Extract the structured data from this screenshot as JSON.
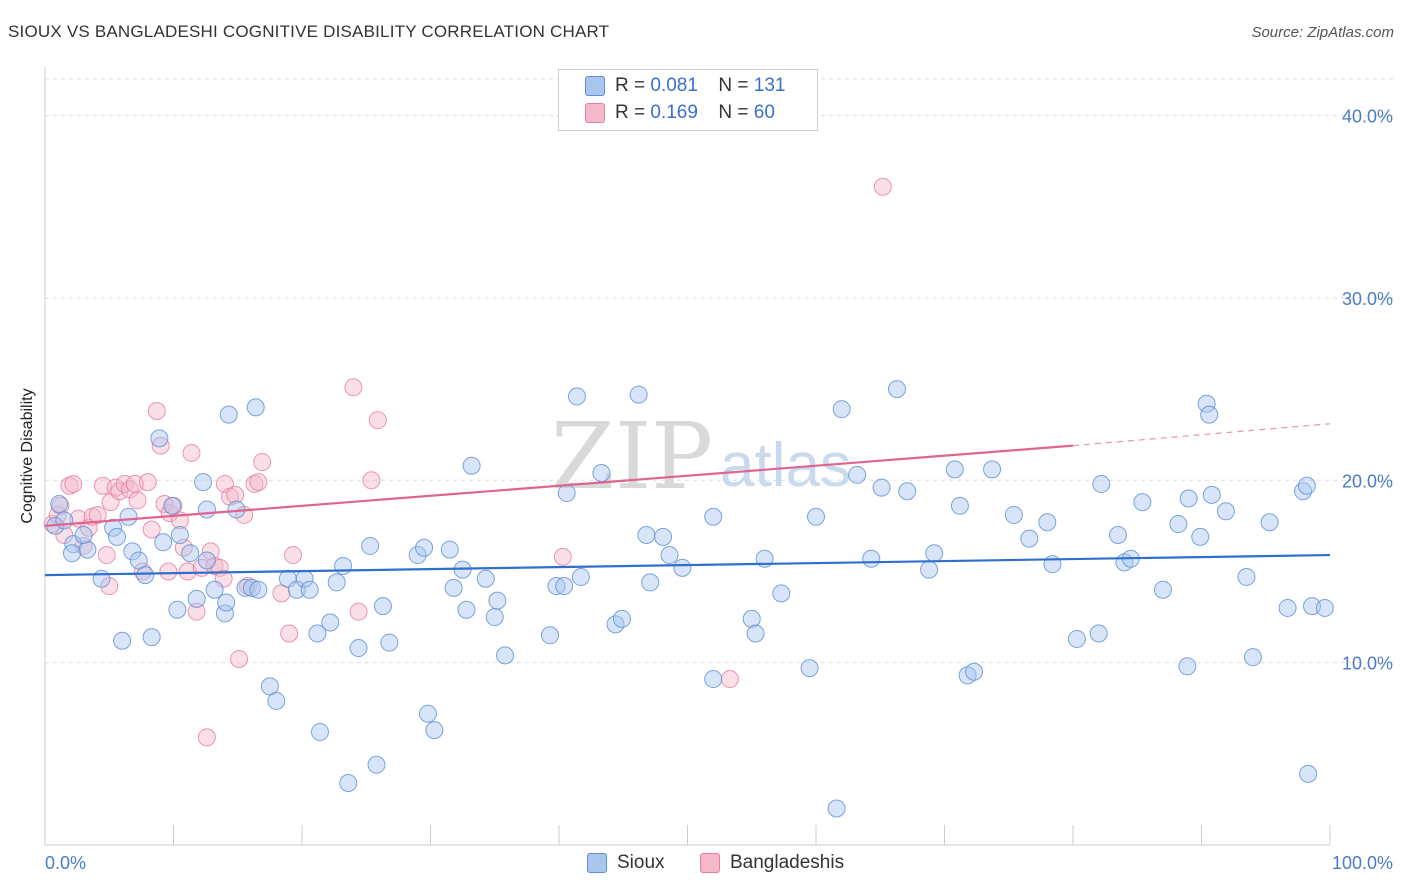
{
  "title": "SIOUX VS BANGLADESHI COGNITIVE DISABILITY CORRELATION CHART",
  "source": "Source: ZipAtlas.com",
  "watermark": {
    "zip": "ZIP",
    "atlas": "atlas"
  },
  "legend": {
    "rows": [
      {
        "r_label": "R =",
        "r_value": "0.081",
        "n_label": "N =",
        "n_value": "131"
      },
      {
        "r_label": "R =",
        "r_value": "0.169",
        "n_label": "N =",
        "n_value": "60"
      }
    ]
  },
  "bottom_legend": [
    "Sioux",
    "Bangladeshis"
  ],
  "colors": {
    "sioux_fill": "#a9c6ef",
    "sioux_stroke": "#5b8fd6",
    "sioux_line": "#2f6fce",
    "bang_fill": "#f5b8c9",
    "bang_stroke": "#e77d9f",
    "bang_line": "#e0648e",
    "tick_text": "#4a7cc8",
    "grid": "#dddddd"
  },
  "chart_data": {
    "type": "scatter",
    "title": "SIOUX VS BANGLADESHI COGNITIVE DISABILITY CORRELATION CHART",
    "xlabel": "",
    "ylabel": "Cognitive Disability",
    "xlim": [
      0,
      100
    ],
    "ylim": [
      0,
      42.5
    ],
    "x_tick_labels": [
      "0.0%",
      "100.0%"
    ],
    "y_ticks": [
      10,
      20,
      30,
      40
    ],
    "y_tick_labels": [
      "10.0%",
      "20.0%",
      "30.0%",
      "40.0%"
    ],
    "grid": true,
    "legend_position": "top-center",
    "series": [
      {
        "name": "Sioux",
        "r": 0.081,
        "n": 131,
        "trend": {
          "x": [
            0,
            100
          ],
          "y": [
            14.8,
            15.9
          ]
        },
        "points": [
          [
            0.8,
            17.5
          ],
          [
            1.5,
            17.8
          ],
          [
            2.2,
            16.5
          ],
          [
            3.3,
            16.2
          ],
          [
            3.0,
            17.0
          ],
          [
            4.4,
            14.6
          ],
          [
            5.3,
            17.4
          ],
          [
            5.6,
            16.9
          ],
          [
            6.0,
            11.2
          ],
          [
            6.5,
            18.0
          ],
          [
            6.8,
            16.1
          ],
          [
            7.3,
            15.6
          ],
          [
            7.8,
            14.8
          ],
          [
            8.3,
            11.4
          ],
          [
            8.9,
            22.3
          ],
          [
            9.2,
            16.6
          ],
          [
            9.9,
            18.6
          ],
          [
            10.3,
            12.9
          ],
          [
            10.5,
            17.0
          ],
          [
            11.3,
            16.0
          ],
          [
            11.8,
            13.5
          ],
          [
            12.3,
            19.9
          ],
          [
            12.6,
            18.4
          ],
          [
            13.2,
            14.0
          ],
          [
            14.0,
            12.7
          ],
          [
            14.1,
            13.3
          ],
          [
            14.3,
            23.6
          ],
          [
            14.9,
            18.4
          ],
          [
            15.6,
            14.1
          ],
          [
            16.1,
            14.1
          ],
          [
            16.4,
            24.0
          ],
          [
            16.6,
            14.0
          ],
          [
            17.5,
            8.7
          ],
          [
            18.0,
            7.9
          ],
          [
            18.9,
            14.6
          ],
          [
            19.6,
            14.0
          ],
          [
            20.2,
            14.6
          ],
          [
            20.6,
            14.0
          ],
          [
            21.2,
            11.6
          ],
          [
            21.4,
            6.2
          ],
          [
            22.2,
            12.2
          ],
          [
            22.7,
            14.4
          ],
          [
            23.2,
            15.3
          ],
          [
            23.6,
            3.4
          ],
          [
            24.4,
            10.8
          ],
          [
            25.3,
            16.4
          ],
          [
            25.8,
            4.4
          ],
          [
            26.3,
            13.1
          ],
          [
            26.8,
            11.1
          ],
          [
            29.0,
            15.9
          ],
          [
            29.5,
            16.3
          ],
          [
            29.8,
            7.2
          ],
          [
            30.3,
            6.3
          ],
          [
            31.5,
            16.2
          ],
          [
            31.8,
            14.1
          ],
          [
            32.5,
            15.1
          ],
          [
            32.8,
            12.9
          ],
          [
            33.2,
            20.8
          ],
          [
            34.3,
            14.6
          ],
          [
            35.0,
            12.5
          ],
          [
            35.2,
            13.4
          ],
          [
            35.8,
            10.4
          ],
          [
            39.3,
            11.5
          ],
          [
            39.8,
            14.2
          ],
          [
            40.4,
            14.2
          ],
          [
            40.6,
            19.3
          ],
          [
            41.4,
            24.6
          ],
          [
            41.7,
            14.7
          ],
          [
            43.3,
            20.4
          ],
          [
            44.4,
            12.1
          ],
          [
            44.9,
            12.4
          ],
          [
            46.2,
            24.7
          ],
          [
            46.8,
            17.0
          ],
          [
            47.1,
            14.4
          ],
          [
            48.1,
            16.9
          ],
          [
            48.6,
            15.9
          ],
          [
            49.6,
            15.2
          ],
          [
            52.0,
            9.1
          ],
          [
            52.0,
            18.0
          ],
          [
            55.0,
            12.4
          ],
          [
            55.3,
            11.6
          ],
          [
            56.0,
            15.7
          ],
          [
            57.3,
            13.8
          ],
          [
            59.5,
            9.7
          ],
          [
            60.0,
            18.0
          ],
          [
            61.6,
            2.0
          ],
          [
            62.0,
            23.9
          ],
          [
            63.2,
            20.3
          ],
          [
            64.3,
            15.7
          ],
          [
            65.1,
            19.6
          ],
          [
            66.3,
            25.0
          ],
          [
            67.1,
            19.4
          ],
          [
            68.8,
            15.1
          ],
          [
            69.2,
            16.0
          ],
          [
            70.8,
            20.6
          ],
          [
            71.2,
            18.6
          ],
          [
            71.8,
            9.3
          ],
          [
            72.3,
            9.5
          ],
          [
            73.7,
            20.6
          ],
          [
            75.4,
            18.1
          ],
          [
            76.6,
            16.8
          ],
          [
            78.0,
            17.7
          ],
          [
            78.4,
            15.4
          ],
          [
            80.3,
            11.3
          ],
          [
            82.0,
            11.6
          ],
          [
            82.2,
            19.8
          ],
          [
            83.5,
            17.0
          ],
          [
            84.0,
            15.5
          ],
          [
            84.5,
            15.7
          ],
          [
            85.4,
            18.8
          ],
          [
            87.0,
            14.0
          ],
          [
            88.2,
            17.6
          ],
          [
            88.9,
            9.8
          ],
          [
            89.0,
            19.0
          ],
          [
            89.9,
            16.9
          ],
          [
            90.4,
            24.2
          ],
          [
            90.6,
            23.6
          ],
          [
            90.8,
            19.2
          ],
          [
            91.9,
            18.3
          ],
          [
            93.5,
            14.7
          ],
          [
            94.0,
            10.3
          ],
          [
            95.3,
            17.7
          ],
          [
            96.7,
            13.0
          ],
          [
            97.9,
            19.4
          ],
          [
            98.2,
            19.7
          ],
          [
            98.3,
            3.9
          ],
          [
            98.6,
            13.1
          ],
          [
            99.6,
            13.0
          ],
          [
            1.1,
            18.7
          ],
          [
            2.1,
            16.0
          ],
          [
            12.6,
            15.6
          ]
        ]
      },
      {
        "name": "Bangladeshis",
        "r": 0.169,
        "n": 60,
        "trend": {
          "x": [
            0,
            80
          ],
          "y": [
            17.5,
            21.9
          ]
        },
        "trend_dashed": {
          "x": [
            80,
            100
          ],
          "y": [
            21.9,
            23.1
          ]
        },
        "points": [
          [
            0.6,
            17.6
          ],
          [
            1.0,
            18.1
          ],
          [
            1.2,
            18.6
          ],
          [
            1.5,
            17.0
          ],
          [
            1.9,
            19.7
          ],
          [
            2.2,
            19.8
          ],
          [
            2.6,
            17.9
          ],
          [
            3.0,
            16.4
          ],
          [
            3.4,
            17.4
          ],
          [
            3.7,
            18.0
          ],
          [
            4.1,
            18.1
          ],
          [
            4.5,
            19.7
          ],
          [
            4.8,
            15.9
          ],
          [
            5.1,
            18.8
          ],
          [
            5.5,
            19.6
          ],
          [
            5.8,
            19.4
          ],
          [
            6.2,
            19.8
          ],
          [
            6.6,
            19.5
          ],
          [
            7.0,
            19.8
          ],
          [
            7.2,
            18.9
          ],
          [
            7.6,
            15.0
          ],
          [
            8.0,
            19.9
          ],
          [
            8.3,
            17.3
          ],
          [
            8.7,
            23.8
          ],
          [
            9.0,
            21.9
          ],
          [
            9.3,
            18.7
          ],
          [
            9.7,
            18.2
          ],
          [
            10.0,
            18.6
          ],
          [
            10.5,
            17.8
          ],
          [
            10.8,
            16.3
          ],
          [
            11.1,
            15.0
          ],
          [
            11.4,
            21.5
          ],
          [
            11.8,
            12.8
          ],
          [
            12.2,
            15.2
          ],
          [
            12.6,
            5.9
          ],
          [
            12.9,
            16.1
          ],
          [
            13.2,
            15.3
          ],
          [
            13.6,
            15.2
          ],
          [
            14.0,
            19.8
          ],
          [
            14.4,
            19.1
          ],
          [
            14.8,
            19.2
          ],
          [
            15.1,
            10.2
          ],
          [
            15.5,
            18.1
          ],
          [
            15.8,
            14.2
          ],
          [
            16.3,
            19.8
          ],
          [
            16.6,
            19.9
          ],
          [
            16.9,
            21.0
          ],
          [
            18.4,
            13.8
          ],
          [
            19.0,
            11.6
          ],
          [
            19.3,
            15.9
          ],
          [
            24.0,
            25.1
          ],
          [
            24.4,
            12.8
          ],
          [
            25.4,
            20.0
          ],
          [
            25.9,
            23.3
          ],
          [
            40.3,
            15.8
          ],
          [
            53.3,
            9.1
          ],
          [
            65.2,
            36.1
          ],
          [
            9.6,
            15.0
          ],
          [
            5.0,
            14.2
          ],
          [
            13.9,
            14.6
          ]
        ]
      }
    ]
  }
}
